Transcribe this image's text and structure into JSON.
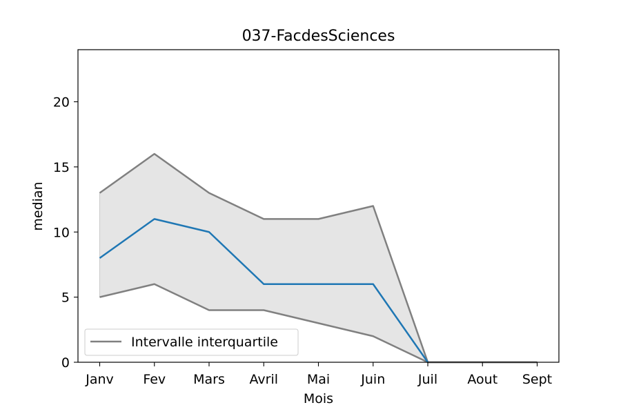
{
  "chart_data": {
    "type": "line",
    "title": "037-FacdesSciences",
    "xlabel": "Mois",
    "ylabel": "median",
    "categories": [
      "Janv",
      "Fev",
      "Mars",
      "Avril",
      "Mai",
      "Juin",
      "Juil",
      "Aout",
      "Sept"
    ],
    "ylim": [
      0,
      24
    ],
    "yticks": [
      0,
      5,
      10,
      15,
      20
    ],
    "grid": false,
    "series": [
      {
        "values": [
          8,
          11,
          10,
          6,
          6,
          6,
          0,
          0,
          0
        ],
        "color": "#1f77b4"
      }
    ],
    "interquartile_band": {
      "name": "Intervalle interquartile",
      "upper": [
        13,
        16,
        13,
        11,
        11,
        12,
        0,
        0,
        0
      ],
      "lower": [
        5,
        6,
        4,
        4,
        3,
        2,
        0,
        0,
        0
      ],
      "line_color": "#808080",
      "fill_color": "#e5e5e5"
    },
    "legend": {
      "position": "lower-left",
      "entries": [
        "Intervalle interquartile"
      ]
    }
  }
}
